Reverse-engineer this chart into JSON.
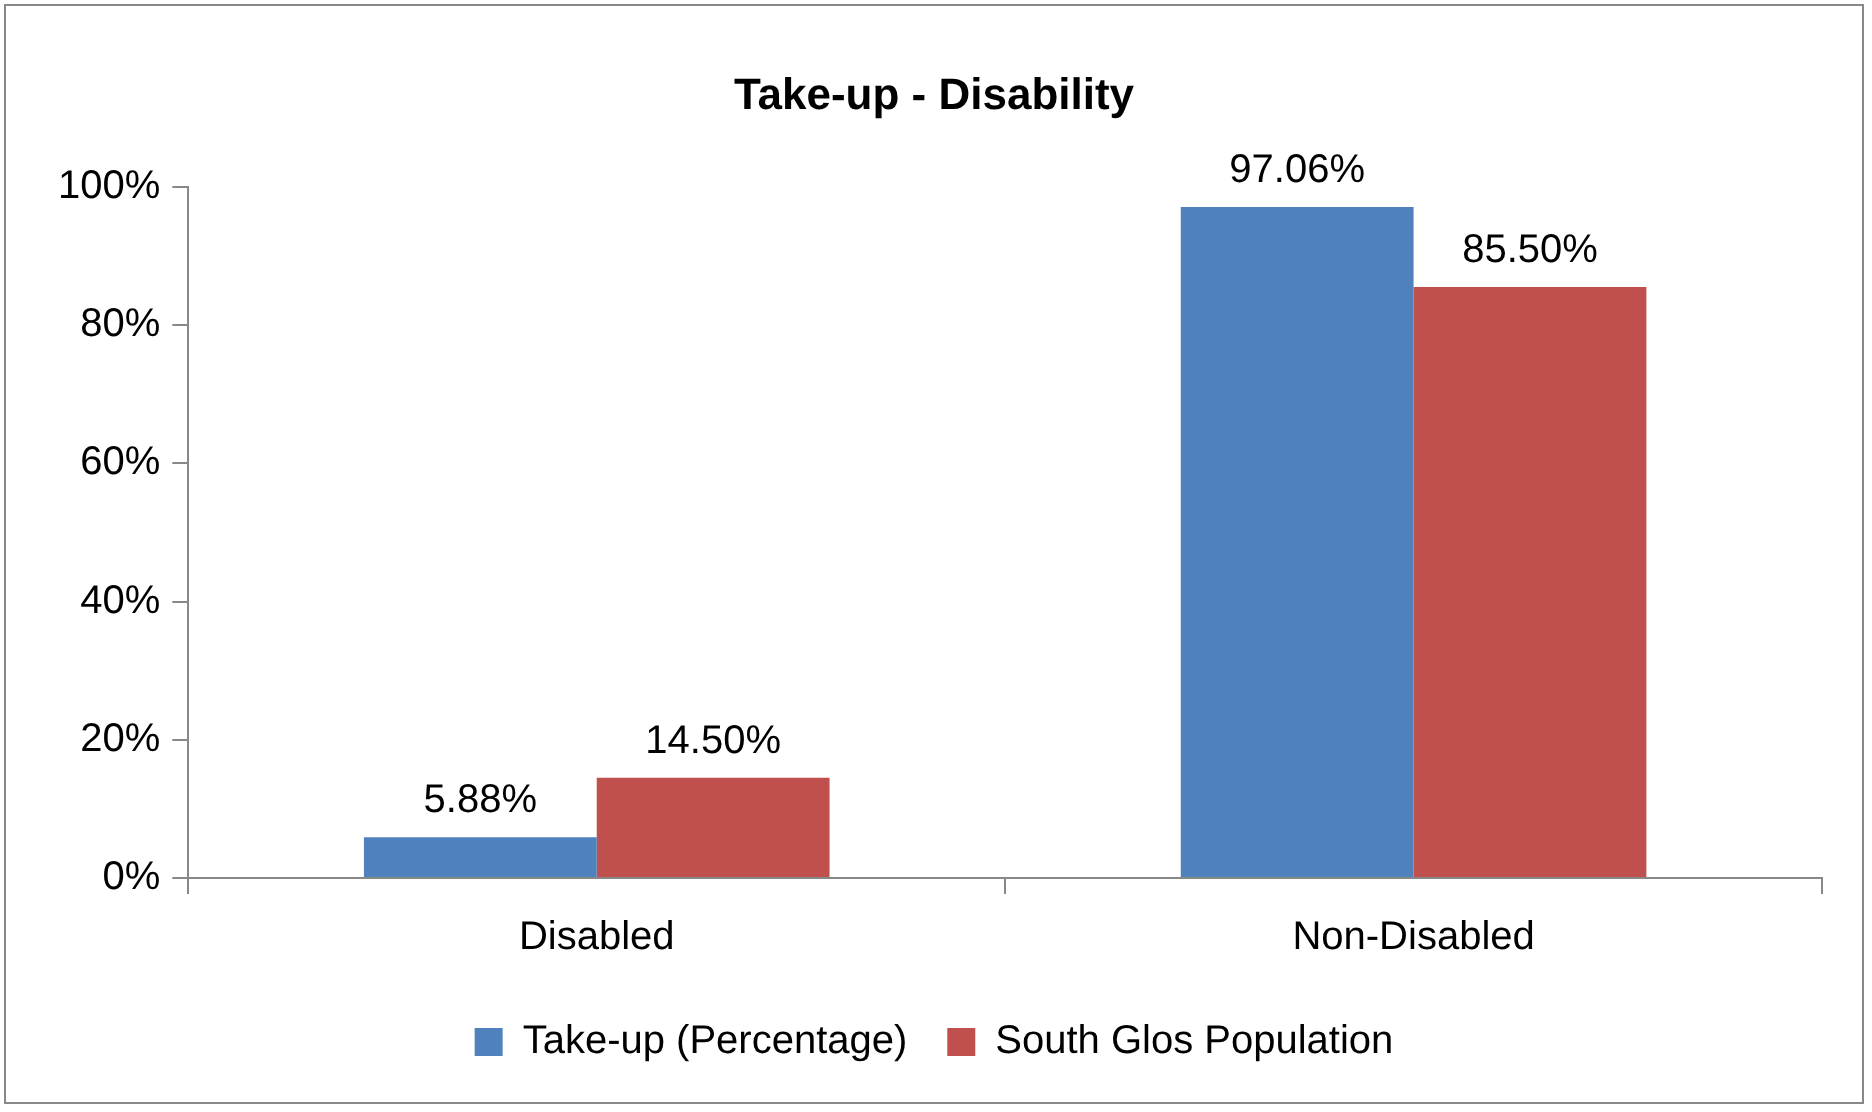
{
  "chart_data": {
    "type": "bar",
    "title": "Take-up - Disability",
    "categories": [
      "Disabled",
      "Non-Disabled"
    ],
    "series": [
      {
        "name": "Take-up (Percentage)",
        "color": "#4f81bd",
        "values": [
          5.88,
          97.06
        ],
        "value_labels": [
          "5.88%",
          "97.06%"
        ]
      },
      {
        "name": "South Glos Population",
        "color": "#c0504d",
        "values": [
          14.5,
          85.5
        ],
        "value_labels": [
          "14.50%",
          "85.50%"
        ]
      }
    ],
    "ylim": [
      0,
      100
    ],
    "yticks": [
      {
        "value": 0,
        "label": "0%"
      },
      {
        "value": 20,
        "label": "20%"
      },
      {
        "value": 40,
        "label": "40%"
      },
      {
        "value": 60,
        "label": "60%"
      },
      {
        "value": 80,
        "label": "80%"
      },
      {
        "value": 100,
        "label": "100%"
      }
    ],
    "legend": "bottom"
  }
}
